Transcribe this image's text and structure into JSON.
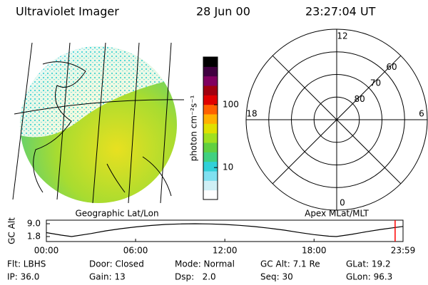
{
  "header": {
    "instrument": "Ultraviolet Imager",
    "date": "28 Jun 00",
    "time": "23:27:04 UT"
  },
  "geographic_panel": {
    "caption": "Geographic Lat/Lon"
  },
  "colorbar": {
    "label": "photon cm⁻²s⁻¹",
    "scale": "log",
    "lim": [
      3.1,
      575
    ],
    "ticks": [
      10,
      100
    ],
    "colors": [
      "#ffffff",
      "#cfeff5",
      "#80e0f0",
      "#30d0d8",
      "#40d080",
      "#60d040",
      "#a0e020",
      "#e0e000",
      "#ffb000",
      "#ff6000",
      "#e00000",
      "#a00010",
      "#800060",
      "#400040",
      "#000000"
    ]
  },
  "polar_panel": {
    "caption": "Apex MLat/MLT",
    "rlim": [
      90,
      50
    ],
    "rings": [
      80,
      70,
      60
    ],
    "hours": [
      12,
      6,
      0,
      18
    ]
  },
  "altitude_chart": {
    "type": "line",
    "ylabel": "GC Alt",
    "x": [
      0,
      1,
      1.7,
      3,
      4,
      5,
      6,
      7,
      8,
      9,
      10,
      11,
      12,
      13,
      14,
      15,
      16,
      17,
      18,
      19,
      19.5,
      20.5,
      21.5,
      22.5,
      23.983
    ],
    "values": [
      4.0,
      2.6,
      1.8,
      3.5,
      5.0,
      6.2,
      7.2,
      8.0,
      8.6,
      8.9,
      9.0,
      8.9,
      8.6,
      8.1,
      7.4,
      6.5,
      5.4,
      4.1,
      2.9,
      2.0,
      1.8,
      3.0,
      4.5,
      5.8,
      7.5
    ],
    "color": "#000000",
    "xlim": [
      0,
      23.983
    ],
    "xticks": [
      {
        "value": 0,
        "label": "00:00"
      },
      {
        "value": 6,
        "label": "06:00"
      },
      {
        "value": 12,
        "label": "12:00"
      },
      {
        "value": 18,
        "label": "18:00"
      },
      {
        "value": 23.983,
        "label": "23:59"
      }
    ],
    "ylim": [
      -1,
      11
    ],
    "yticks": [
      {
        "value": 9,
        "label": "9.0"
      },
      1.8
    ],
    "marker": {
      "x": 23.45,
      "color": "#ff0000"
    }
  },
  "info": [
    [
      "Flt: LBHS",
      "Door: Closed",
      "Mode: Normal",
      "GC Alt: 7.1 Re",
      "GLat: 19.2"
    ],
    [
      "IP: 36.0",
      "Gain: 13",
      "Dsp:   2.0",
      "Seq: 30",
      "GLon: 96.3"
    ]
  ]
}
